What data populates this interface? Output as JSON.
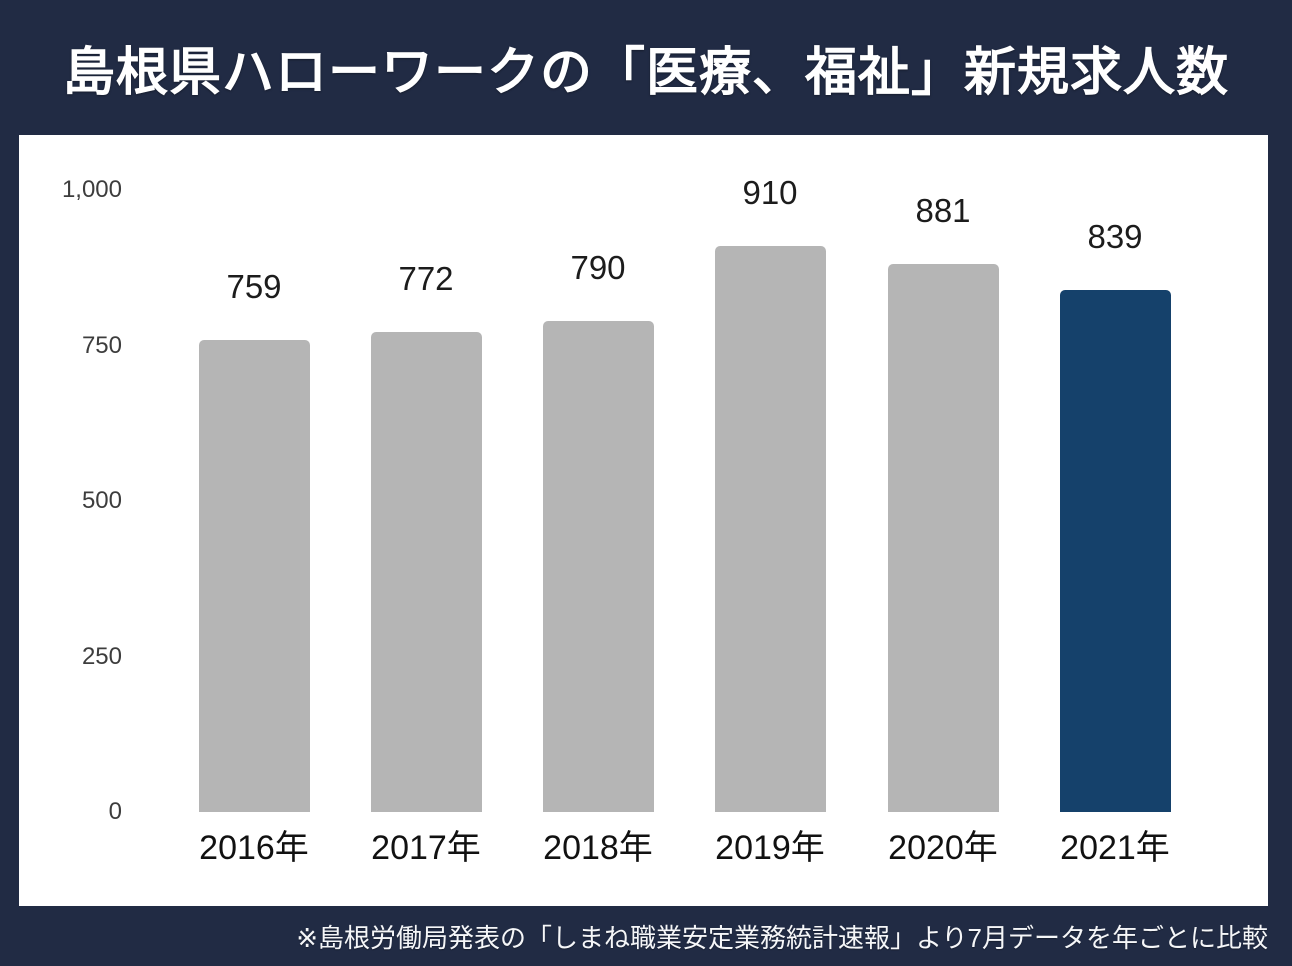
{
  "page": {
    "background_color": "#212b44",
    "card_color": "#ffffff"
  },
  "header": {
    "title": "島根県ハローワークの「医療、福祉」新規求人数",
    "title_color": "#ffffff"
  },
  "footer": {
    "note": "※島根労働局発表の「しまね職業安定業務統計速報」より7月データを年ごとに比較",
    "text_color": "#f5f6f8"
  },
  "colors": {
    "bar_default": "#b5b5b5",
    "bar_highlight": "#15416b",
    "value_label": "#1c1c1c",
    "axis_label": "#3d3d3d",
    "x_label": "#111111"
  },
  "chart_data": {
    "type": "bar",
    "title": "島根県ハローワークの「医療、福祉」新規求人数",
    "categories": [
      "2016年",
      "2017年",
      "2018年",
      "2019年",
      "2020年",
      "2021年"
    ],
    "values": [
      759,
      772,
      790,
      910,
      881,
      839
    ],
    "series": [
      {
        "name": "新規求人数",
        "values": [
          759,
          772,
          790,
          910,
          881,
          839
        ]
      }
    ],
    "highlight_index": 5,
    "bar_colors": [
      "#b5b5b5",
      "#b5b5b5",
      "#b5b5b5",
      "#b5b5b5",
      "#b5b5b5",
      "#15416b"
    ],
    "value_labels_shown": true,
    "xlabel": "",
    "ylabel": "",
    "ylim": [
      0,
      1000
    ],
    "y_ticks": [
      {
        "value": 0,
        "label": "0"
      },
      {
        "value": 250,
        "label": "250"
      },
      {
        "value": 500,
        "label": "500"
      },
      {
        "value": 750,
        "label": "750"
      },
      {
        "value": 1000,
        "label": "1,000"
      }
    ],
    "grid": false,
    "legend_position": "none",
    "source_note": "※島根労働局発表の「しまね職業安定業務統計速報」より7月データを年ごとに比較"
  }
}
